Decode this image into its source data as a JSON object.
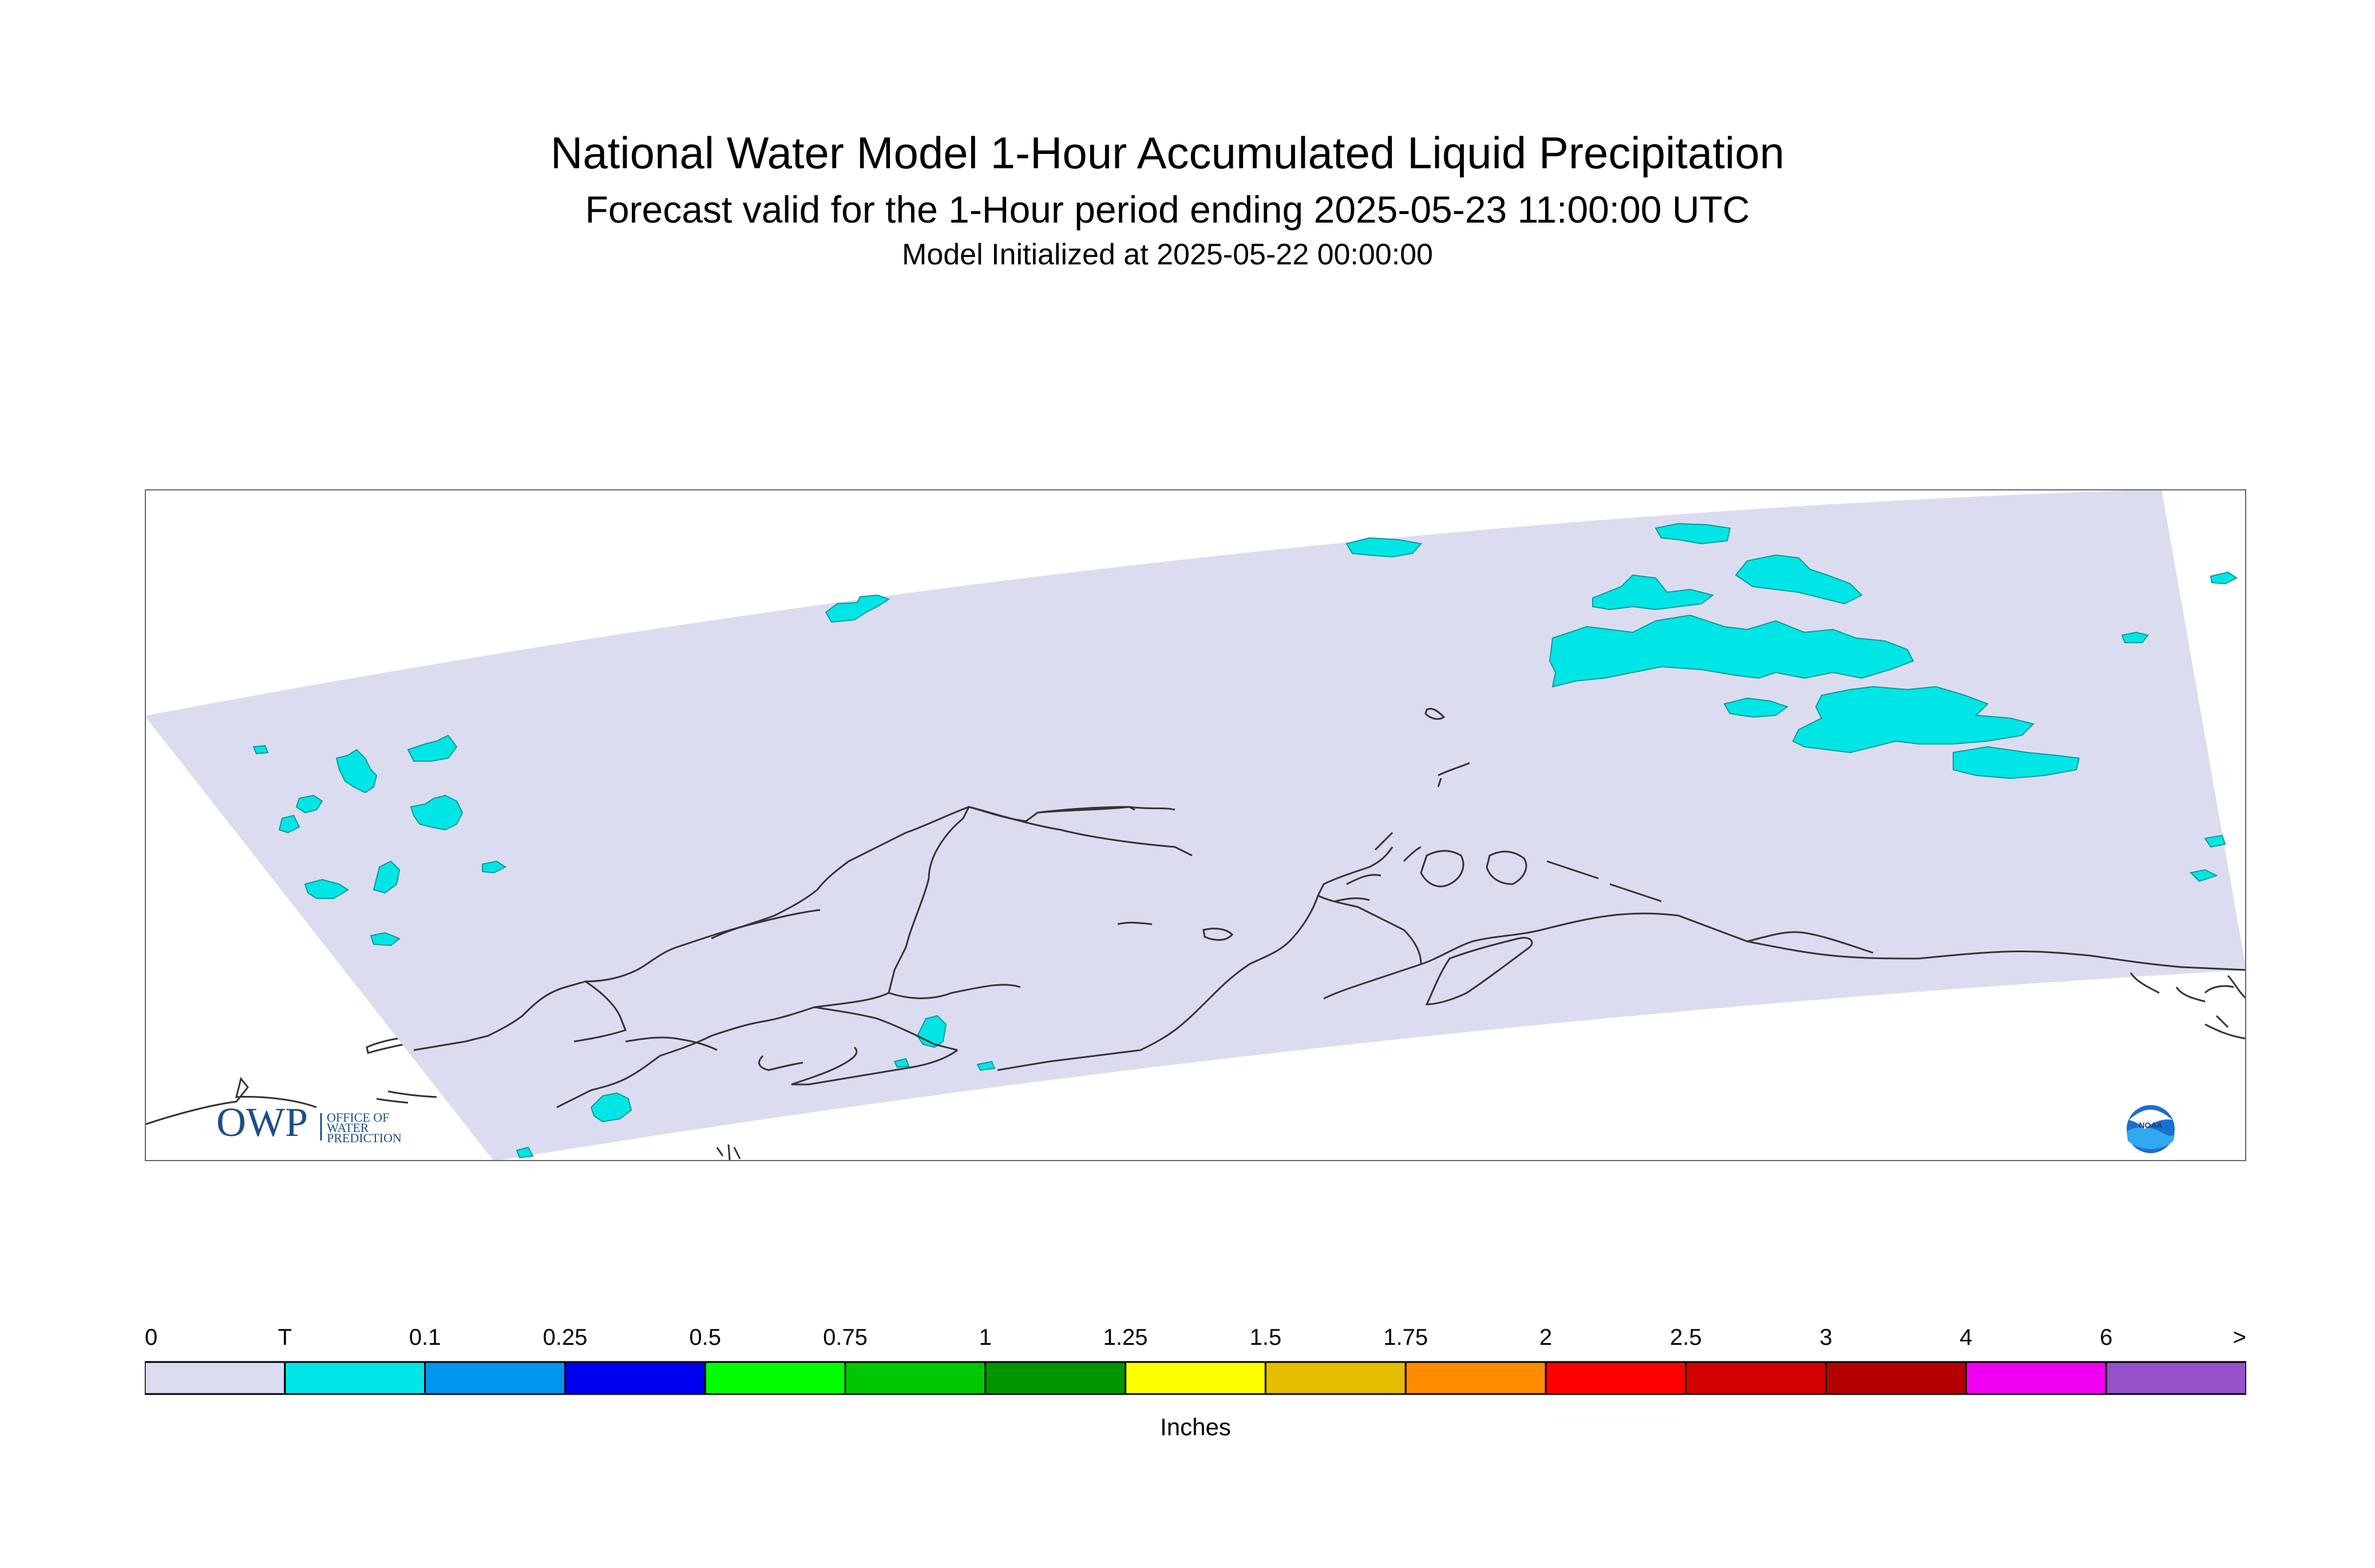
{
  "header": {
    "title": "National Water Model 1-Hour Accumulated Liquid Precipitation",
    "subtitle": "Forecast valid for the 1-Hour period ending 2025-05-23 11:00:00 UTC",
    "init": "Model Initialized at 2025-05-22 00:00:00"
  },
  "map": {
    "region": "Alaska",
    "domain_fill": "#dcdcf0",
    "coastline_color": "#333333",
    "precip_color": "#00e6e6",
    "max_category_present": "T"
  },
  "logos": {
    "owp": {
      "mark": "OWP",
      "line1": "OFFICE OF",
      "line2": "WATER",
      "line3": "PREDICTION",
      "color": "#1c4f8a"
    },
    "noaa": {
      "mark": "NOAA",
      "icon": "noaa-logo-icon"
    }
  },
  "legend": {
    "unit": "Inches",
    "ticks": [
      "0",
      "T",
      "0.1",
      "0.25",
      "0.5",
      "0.75",
      "1",
      "1.25",
      "1.5",
      "1.75",
      "2",
      "2.5",
      "3",
      "4",
      "6",
      ">"
    ],
    "colors": [
      "#dcdcf0",
      "#00e6e6",
      "#0096f0",
      "#0000f0",
      "#00ff00",
      "#00c800",
      "#009600",
      "#ffff00",
      "#e6be00",
      "#ff8c00",
      "#ff0000",
      "#d20000",
      "#b40000",
      "#f000f0",
      "#9650c8"
    ]
  }
}
